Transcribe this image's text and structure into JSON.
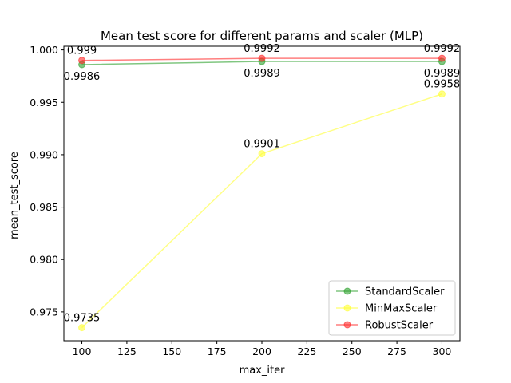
{
  "chart_data": {
    "type": "line",
    "title": "Mean test score for different params and scaler (MLP)",
    "xlabel": "max_iter",
    "ylabel": "mean_test_score",
    "x": [
      100,
      200,
      300
    ],
    "xlim": [
      90,
      310
    ],
    "ylim": [
      0.97225,
      1.00035
    ],
    "xticks": [
      100,
      125,
      150,
      175,
      200,
      225,
      250,
      275,
      300
    ],
    "yticks": [
      0.975,
      0.98,
      0.985,
      0.99,
      0.995,
      1.0
    ],
    "ytick_labels": [
      "0.975",
      "0.980",
      "0.985",
      "0.990",
      "0.995",
      "1.000"
    ],
    "grid": false,
    "legend_position": "lower-right",
    "series": [
      {
        "name": "StandardScaler",
        "color": "#2ca02c",
        "values": [
          0.9986,
          0.9989,
          0.9989
        ],
        "labels": [
          "0.9986",
          "0.9989",
          "0.9989"
        ],
        "label_side": "below"
      },
      {
        "name": "MinMaxScaler",
        "color": "#ffff33",
        "values": [
          0.9735,
          0.9901,
          0.9958
        ],
        "labels": [
          "0.9735",
          "0.9901",
          "0.9958"
        ],
        "label_side": "above"
      },
      {
        "name": "RobustScaler",
        "color": "#ff2a2a",
        "values": [
          0.999,
          0.9992,
          0.9992
        ],
        "labels": [
          "0.999",
          "0.9992",
          "0.9992"
        ],
        "label_side": "above"
      }
    ]
  }
}
